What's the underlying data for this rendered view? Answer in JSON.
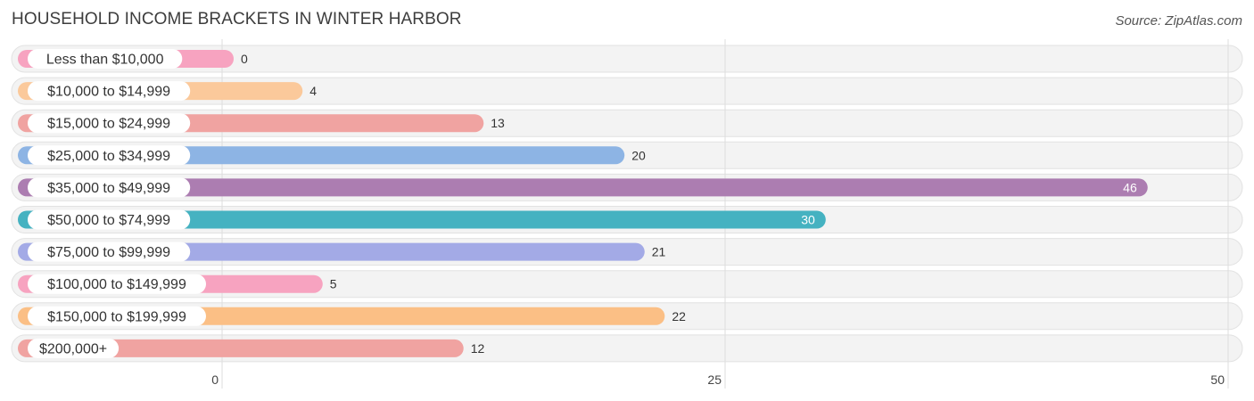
{
  "title": "HOUSEHOLD INCOME BRACKETS IN WINTER HARBOR",
  "source": "Source: ZipAtlas.com",
  "chart_data": {
    "type": "bar",
    "orientation": "horizontal",
    "title": "HOUSEHOLD INCOME BRACKETS IN WINTER HARBOR",
    "categories": [
      "Less than $10,000",
      "$10,000 to $14,999",
      "$15,000 to $24,999",
      "$25,000 to $34,999",
      "$35,000 to $49,999",
      "$50,000 to $74,999",
      "$75,000 to $99,999",
      "$100,000 to $149,999",
      "$150,000 to $199,999",
      "$200,000+"
    ],
    "values": [
      0,
      4,
      13,
      20,
      46,
      30,
      21,
      5,
      22,
      12
    ],
    "colors": [
      "#f7a3c0",
      "#fbc99b",
      "#f0a3a1",
      "#8db4e4",
      "#ac7db1",
      "#45b2c1",
      "#a3aae6",
      "#f7a3c0",
      "#fbbf85",
      "#f0a3a1"
    ],
    "xlim": [
      0,
      50
    ],
    "xticks": [
      0,
      25,
      50
    ],
    "grid": true,
    "value_labels_inside": [
      4,
      5
    ]
  }
}
